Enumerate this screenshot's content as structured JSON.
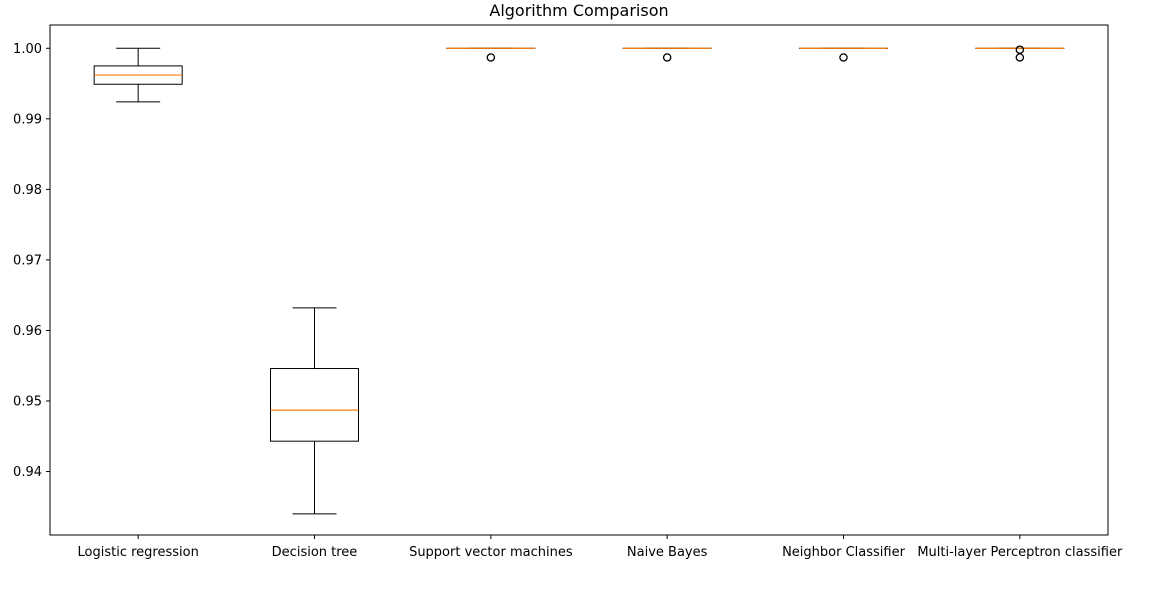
{
  "chart_data": {
    "type": "box",
    "title": "Algorithm Comparison",
    "xlabel": "",
    "ylabel": "",
    "ylim": [
      0.931,
      1.0033
    ],
    "yticks": [
      0.94,
      0.95,
      0.96,
      0.97,
      0.98,
      0.99,
      1.0
    ],
    "ytick_labels": [
      "0.94",
      "0.95",
      "0.96",
      "0.97",
      "0.98",
      "0.99",
      "1.00"
    ],
    "categories": [
      "Logistic regression",
      "Decision tree",
      "Support vector machines",
      "Naive Bayes",
      "Neighbor Classifier",
      "Multi-layer Perceptron classifier"
    ],
    "boxes": [
      {
        "whisker_low": 0.9924,
        "q1": 0.9949,
        "median": 0.9962,
        "q3": 0.9975,
        "whisker_high": 1.0,
        "outliers": []
      },
      {
        "whisker_low": 0.934,
        "q1": 0.9443,
        "median": 0.9487,
        "q3": 0.9546,
        "whisker_high": 0.9632,
        "outliers": []
      },
      {
        "whisker_low": 1.0,
        "q1": 1.0,
        "median": 1.0,
        "q3": 1.0,
        "whisker_high": 1.0,
        "outliers": [
          0.9987
        ]
      },
      {
        "whisker_low": 1.0,
        "q1": 1.0,
        "median": 1.0,
        "q3": 1.0,
        "whisker_high": 1.0,
        "outliers": [
          0.9987
        ]
      },
      {
        "whisker_low": 1.0,
        "q1": 1.0,
        "median": 1.0,
        "q3": 1.0,
        "whisker_high": 1.0,
        "outliers": [
          0.9987
        ]
      },
      {
        "whisker_low": 1.0,
        "q1": 1.0,
        "median": 1.0,
        "q3": 1.0,
        "whisker_high": 1.0,
        "outliers": [
          0.9987,
          0.9998
        ]
      }
    ],
    "colors": {
      "box": "#000000",
      "median": "#ff7f0e",
      "outlier": "#000000"
    },
    "grid": false,
    "legend": "none"
  }
}
